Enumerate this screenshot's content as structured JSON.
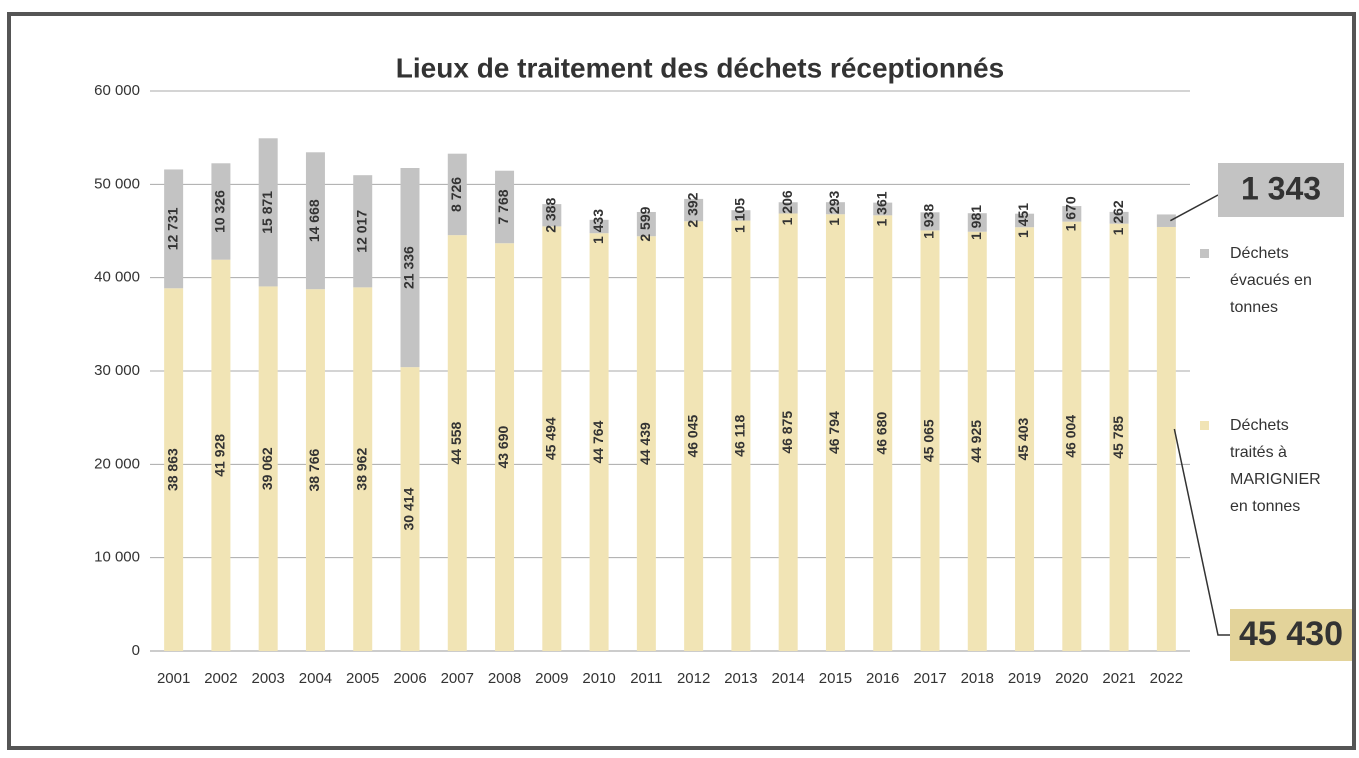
{
  "chart_data": {
    "type": "stacked_bar",
    "title": "Lieux de traitement des déchets réceptionnés",
    "categories": [
      "2001",
      "2002",
      "2003",
      "2004",
      "2005",
      "2006",
      "2007",
      "2008",
      "2009",
      "2010",
      "2011",
      "2012",
      "2013",
      "2014",
      "2015",
      "2016",
      "2017",
      "2018",
      "2019",
      "2020",
      "2021",
      "2022"
    ],
    "series": [
      {
        "name": "Déchets traités à MARIGNIER en tonnes",
        "color": "#f1e4b5",
        "values": [
          38863,
          41928,
          39062,
          38766,
          38962,
          30414,
          44558,
          43690,
          45494,
          44764,
          44439,
          46045,
          46118,
          46875,
          46794,
          46680,
          45065,
          44925,
          45403,
          46004,
          45785,
          45430
        ],
        "value_labels": [
          "38 863",
          "41 928",
          "39 062",
          "38 766",
          "38 962",
          "30 414",
          "44 558",
          "43 690",
          "45 494",
          "44 764",
          "44 439",
          "46 045",
          "46 118",
          "46 875",
          "46 794",
          "46 680",
          "45 065",
          "44 925",
          "45 403",
          "46 004",
          "45 785",
          "45 430"
        ]
      },
      {
        "name": "Déchets évacués en tonnes",
        "color": "#c3c3c3",
        "values": [
          12731,
          10326,
          15871,
          14668,
          12017,
          21336,
          8726,
          7768,
          2388,
          1433,
          2599,
          2392,
          1105,
          1206,
          1293,
          1361,
          1938,
          1981,
          1451,
          1670,
          1262,
          1343
        ],
        "value_labels": [
          "12 731",
          "10 326",
          "15 871",
          "14 668",
          "12 017",
          "21 336",
          "8 726",
          "7 768",
          "2 388",
          "1 433",
          "2 599",
          "2 392",
          "1 105",
          "1 206",
          "1 293",
          "1 361",
          "1 938",
          "1 981",
          "1 451",
          "1 670",
          "1 262",
          "1 343"
        ]
      }
    ],
    "ylim": [
      0,
      60000
    ],
    "yticks": [
      0,
      {
        "value": 10000,
        "label": "10 000"
      },
      {
        "value": 20000,
        "label": "20 000"
      },
      {
        "value": 30000,
        "label": "30 000"
      },
      {
        "value": 40000,
        "label": "40 000"
      },
      {
        "value": 50000,
        "label": "50 000"
      },
      {
        "value": 60000,
        "label": "60 000"
      }
    ],
    "grid": true,
    "legend": "right"
  }
}
